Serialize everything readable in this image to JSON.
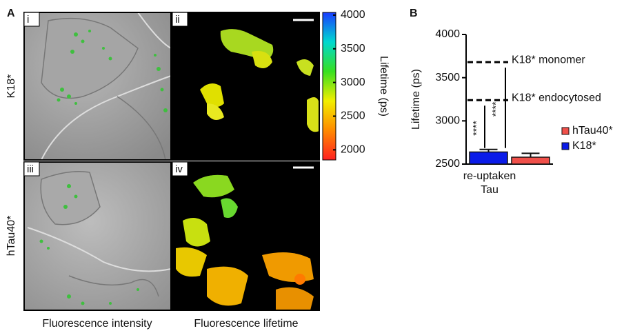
{
  "panel_a": {
    "label": "A",
    "row_labels": [
      "K18*",
      "hTau40*"
    ],
    "subpanel_labels": [
      "i",
      "ii",
      "iii",
      "iv"
    ],
    "column_captions": [
      "Fluorescence intensity",
      "Fluorescence lifetime"
    ],
    "colorbar": {
      "label": "Lifetime (ps)",
      "lim": [
        1850,
        4040
      ],
      "ticks": [
        2000,
        2500,
        3000,
        3500,
        4000
      ],
      "colors": [
        "#ff2020",
        "#ff8a00",
        "#f2ee00",
        "#37e020",
        "#00d8d0",
        "#1a3cff"
      ]
    }
  },
  "chart_data": {
    "type": "bar",
    "label": "B",
    "ylabel": "Lifetime (ps)",
    "categories": [
      "re-uptaken Tau"
    ],
    "series": [
      {
        "name": "K18*",
        "color": "#0a1be8",
        "values": [
          2640
        ],
        "errors": [
          30
        ]
      },
      {
        "name": "hTau40*",
        "color": "#f0504a",
        "values": [
          2580
        ],
        "errors": [
          45
        ]
      }
    ],
    "ylim": [
      2500,
      4000
    ],
    "yticks": [
      2500,
      3000,
      3500,
      4000
    ],
    "reference_lines": [
      {
        "value": 3680,
        "label": "K18* monomer"
      },
      {
        "value": 3240,
        "label": "K18* endocytosed"
      }
    ],
    "significance": [
      "****",
      "****"
    ]
  }
}
